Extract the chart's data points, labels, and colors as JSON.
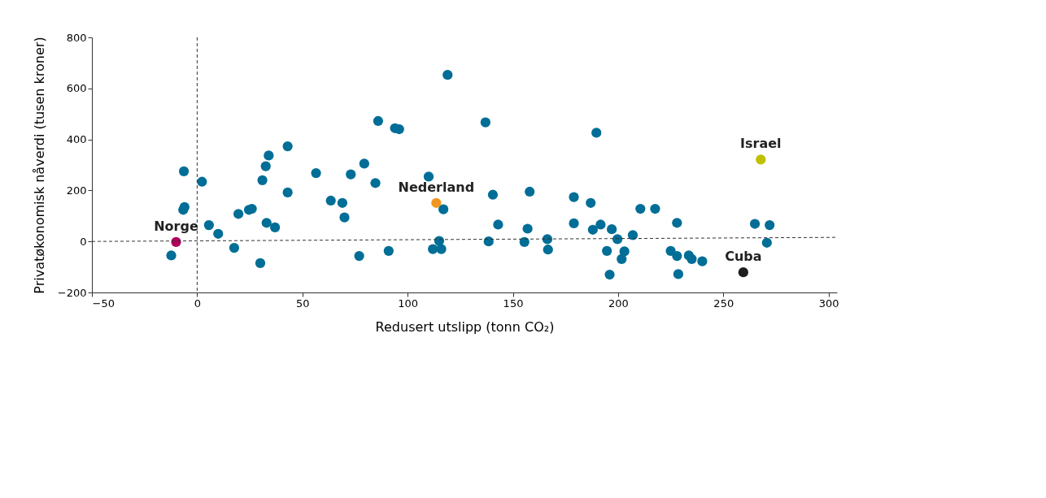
{
  "chart_data": {
    "type": "scatter",
    "xlabel": "Redusert utslipp (tonn CO₂)",
    "ylabel": "Privatøkonomisk nåverdi (tusen kroner)",
    "xlim": [
      -50,
      304
    ],
    "xticks": [
      -50,
      0,
      50,
      100,
      150,
      200,
      250,
      300
    ],
    "ylim": [
      -200,
      800
    ],
    "yticks": [
      -200,
      0,
      200,
      400,
      600,
      800
    ],
    "grid": false,
    "ref_lines": [
      {
        "axis": "x",
        "value": 0,
        "line_style": "dashed",
        "color": "#333333"
      }
    ],
    "series": [
      {
        "color": "#006e96",
        "x": [
          -12.3,
          -6.3,
          -6,
          -6.6,
          2.3,
          5.6,
          10,
          17.6,
          19.6,
          24.6,
          26,
          30,
          31,
          32.6,
          34,
          33,
          37,
          43,
          43,
          56.5,
          63.5,
          69,
          70,
          73,
          77,
          79.4,
          84.7,
          86,
          91,
          94,
          96,
          110,
          119,
          112,
          116,
          115,
          117,
          137,
          138.5,
          140.5,
          143,
          155.5,
          157,
          158,
          166.4,
          166.7,
          179,
          179,
          187,
          188,
          189.7,
          191.7,
          194.7,
          196,
          197,
          199.7,
          201.7,
          203,
          207,
          210.6,
          217.6,
          225,
          228,
          228,
          228.6,
          233.6,
          235,
          240,
          265,
          272,
          270.7
        ],
        "values": [
          -55,
          275,
          135,
          124,
          234,
          64,
          30,
          -25,
          108,
          124,
          128,
          -85,
          240,
          295,
          337,
          73,
          55,
          373,
          192,
          268,
          160,
          151,
          94,
          263,
          -57,
          305,
          229,
          472,
          -37,
          444,
          440,
          254,
          653,
          -30,
          -30,
          2,
          126,
          467,
          0,
          183,
          66,
          -2,
          50,
          195,
          9,
          -32,
          174,
          71,
          151,
          46,
          426,
          66,
          -37,
          -130,
          48,
          9,
          -69,
          -39,
          25,
          128,
          128,
          -37,
          -57,
          73,
          -128,
          -55,
          -69,
          -78,
          69,
          64,
          -5
        ]
      },
      {
        "name": "Norge",
        "color": "#b0005a",
        "x": [
          -10
        ],
        "values": [
          -2
        ]
      },
      {
        "name": "Nederland",
        "color": "#f0961e",
        "x": [
          113.6
        ],
        "values": [
          151
        ]
      },
      {
        "name": "Israel",
        "color": "#c0c000",
        "x": [
          267.8
        ],
        "values": [
          321
        ]
      },
      {
        "name": "Cuba",
        "color": "#1e1e1e",
        "x": [
          259.5
        ],
        "values": [
          -121
        ]
      },
      {
        "type": "line",
        "line_style": "dashed",
        "marker": "none",
        "color": "#333333",
        "x": [
          -50,
          304
        ],
        "values": [
          0,
          16
        ]
      }
    ]
  }
}
